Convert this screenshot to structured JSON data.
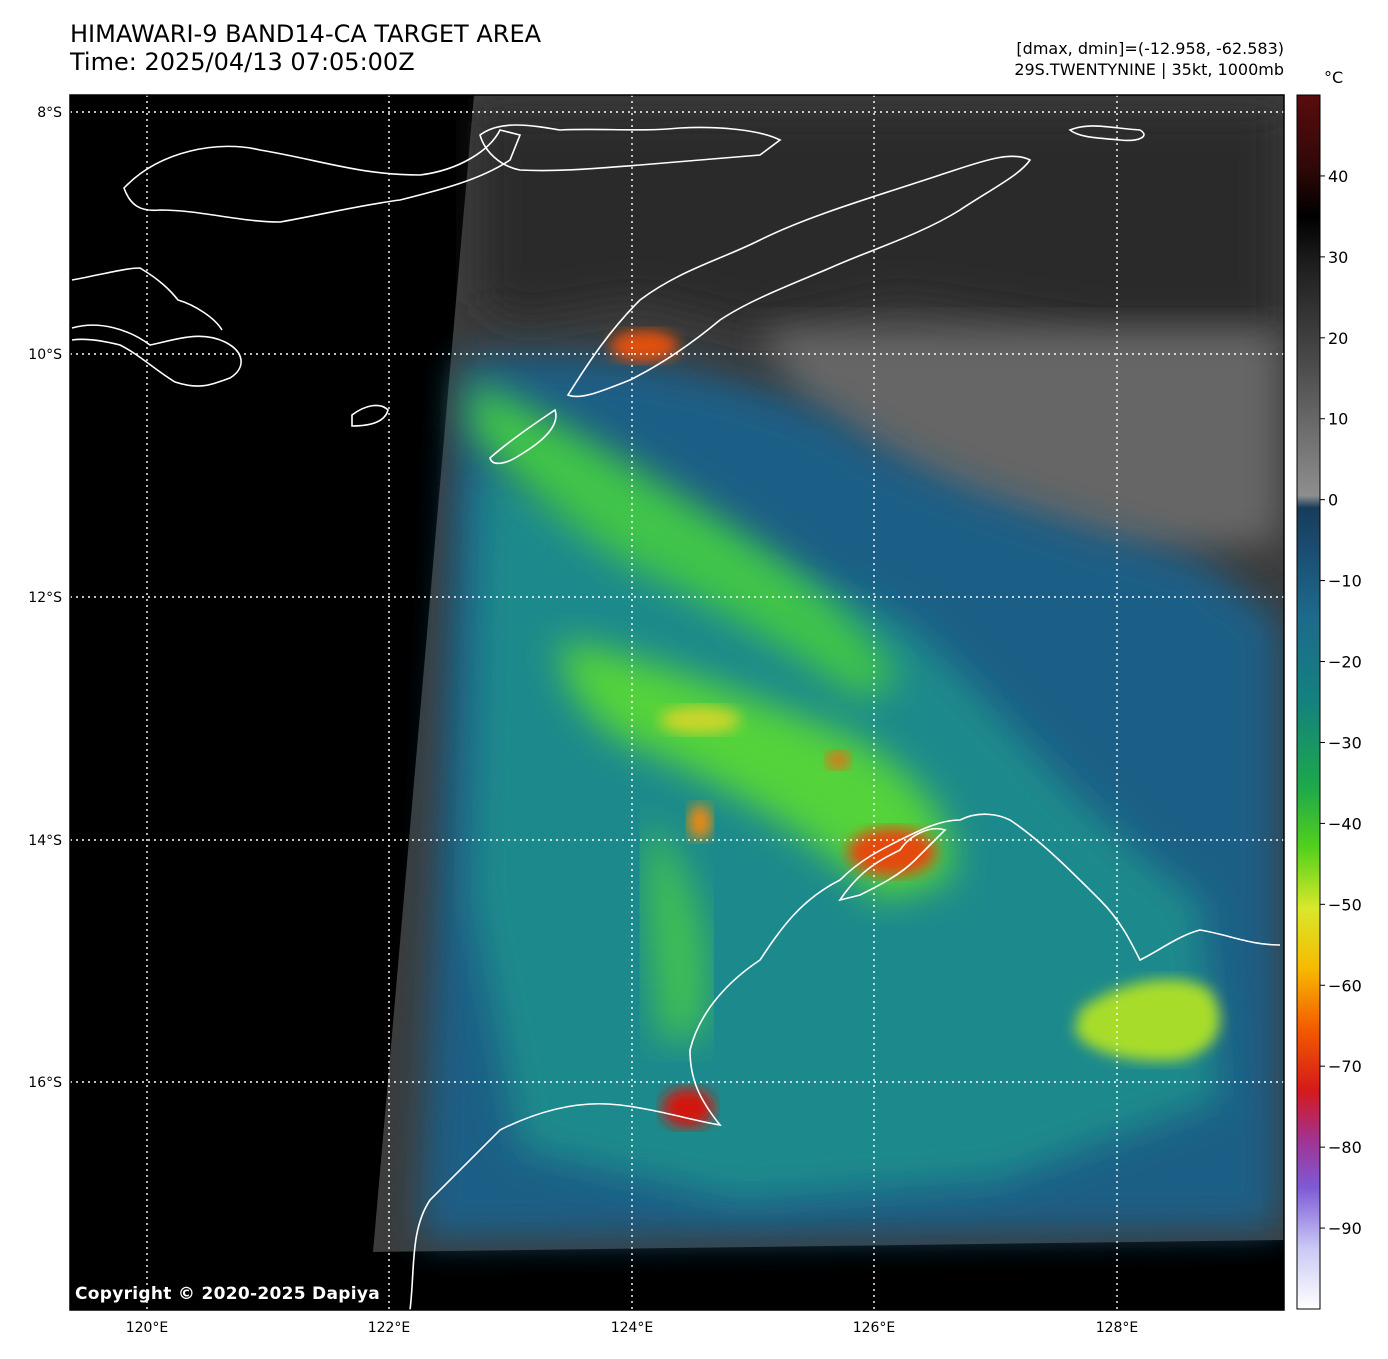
{
  "header": {
    "title": "HIMAWARI-9 BAND14-CA TARGET AREA",
    "time": "Time: 2025/04/13 07:05:00Z",
    "range": "[dmax, dmin]=(-12.958, -62.583)",
    "storm": "29S.TWENTYNINE | 35kt, 1000mb"
  },
  "map": {
    "lat_labels": [
      "8°S",
      "10°S",
      "12°S",
      "14°S",
      "16°S"
    ],
    "lon_labels": [
      "120°E",
      "122°E",
      "124°E",
      "126°E",
      "128°E"
    ],
    "copyright": "Copyright © 2020-2025 Dapiya"
  },
  "colorbar": {
    "unit": "°C",
    "ticks": [
      "40",
      "30",
      "20",
      "10",
      "0",
      "−10",
      "−20",
      "−30",
      "−40",
      "−50",
      "−60",
      "−70",
      "−80",
      "−90"
    ],
    "tick_values": [
      40,
      30,
      20,
      10,
      0,
      -10,
      -20,
      -30,
      -40,
      -50,
      -60,
      -70,
      -80,
      -90
    ],
    "range": [
      -100,
      50
    ]
  },
  "colors": {
    "background": "#000000",
    "coast": "#ffffff",
    "grid": "#ffffff"
  }
}
